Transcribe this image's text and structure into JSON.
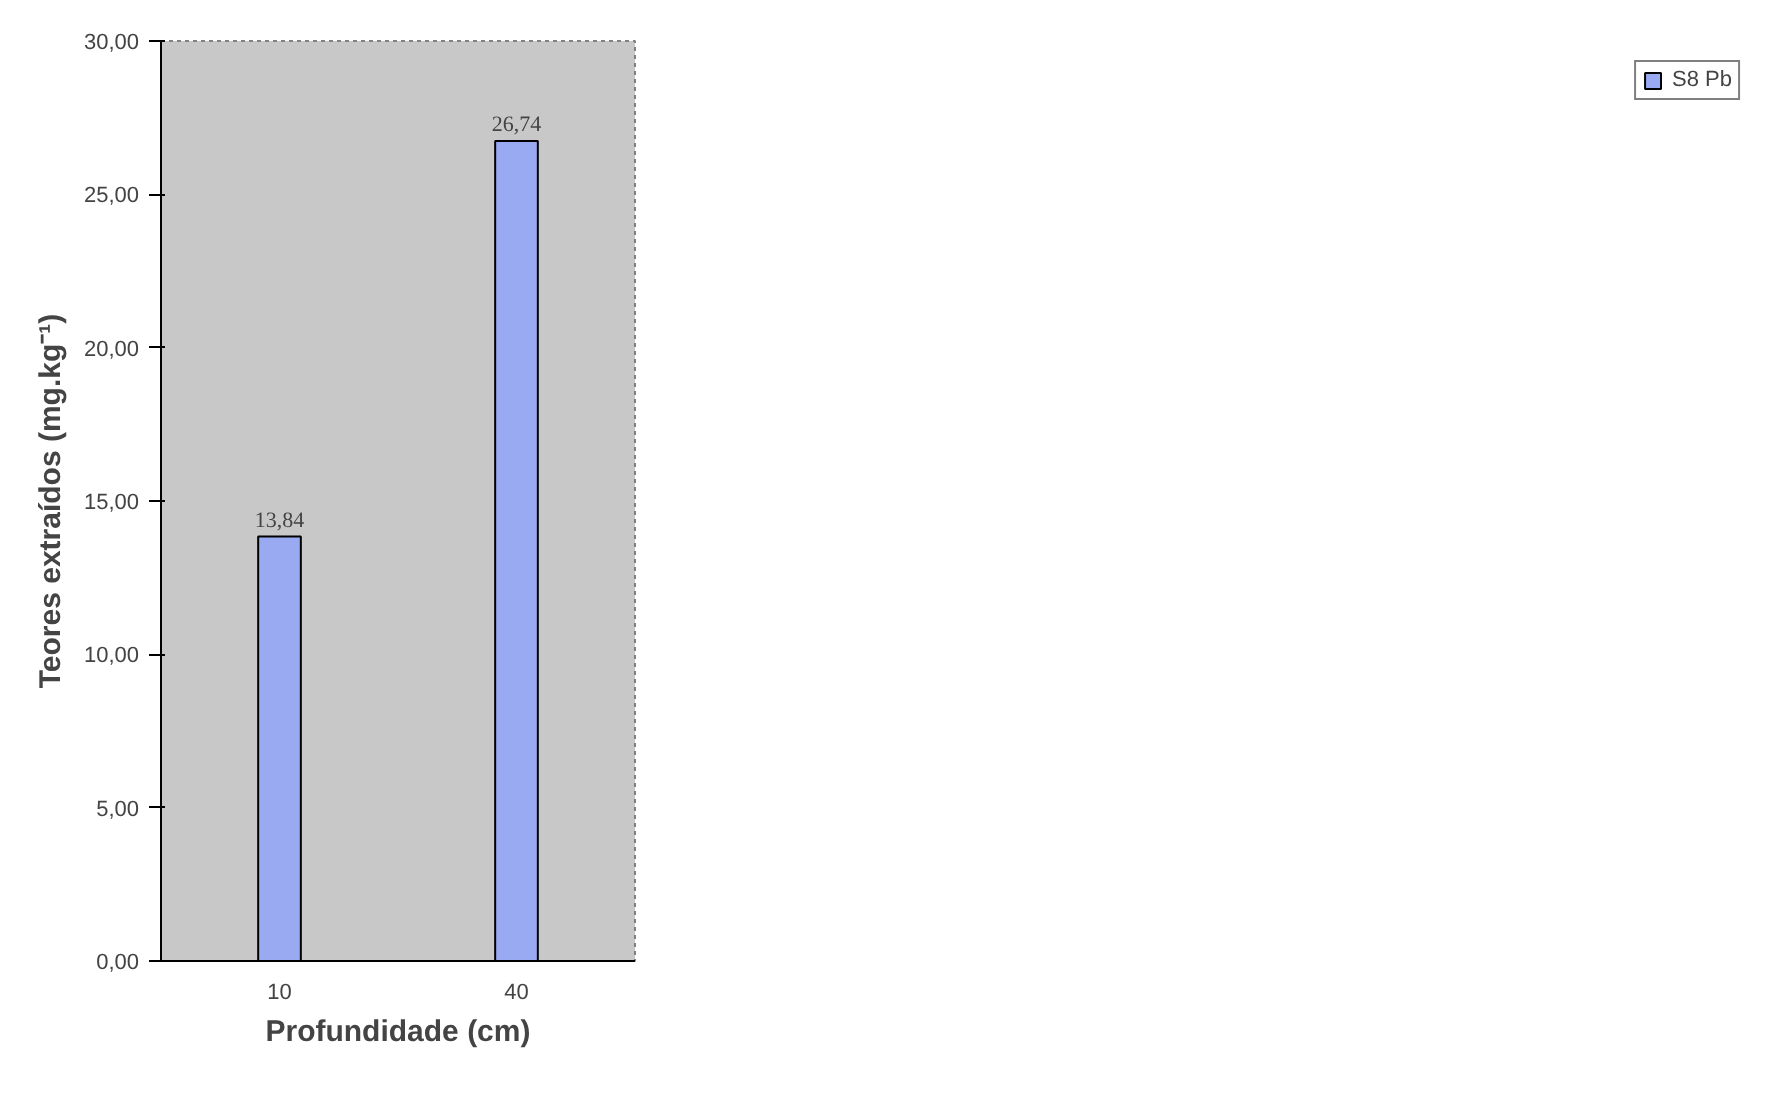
{
  "chart_data": {
    "type": "bar",
    "xlabel": "Profundidade (cm)",
    "ylabel": "Teores extraídos (mg.kg⁻¹)",
    "categories": [
      "10",
      "40"
    ],
    "series": [
      {
        "name": "S8 Pb",
        "color": "#9aaaf2",
        "values": [
          13.84,
          26.74
        ],
        "value_labels": [
          "13,84",
          "26,74"
        ]
      }
    ],
    "ylim": [
      0,
      30
    ],
    "yticks": [
      {
        "value": 0,
        "label": "0,00"
      },
      {
        "value": 5,
        "label": "5,00"
      },
      {
        "value": 10,
        "label": "10,00"
      },
      {
        "value": 15,
        "label": "15,00"
      },
      {
        "value": 20,
        "label": "20,00"
      },
      {
        "value": 25,
        "label": "25,00"
      },
      {
        "value": 30,
        "label": "30,00"
      }
    ],
    "legend": "right"
  }
}
